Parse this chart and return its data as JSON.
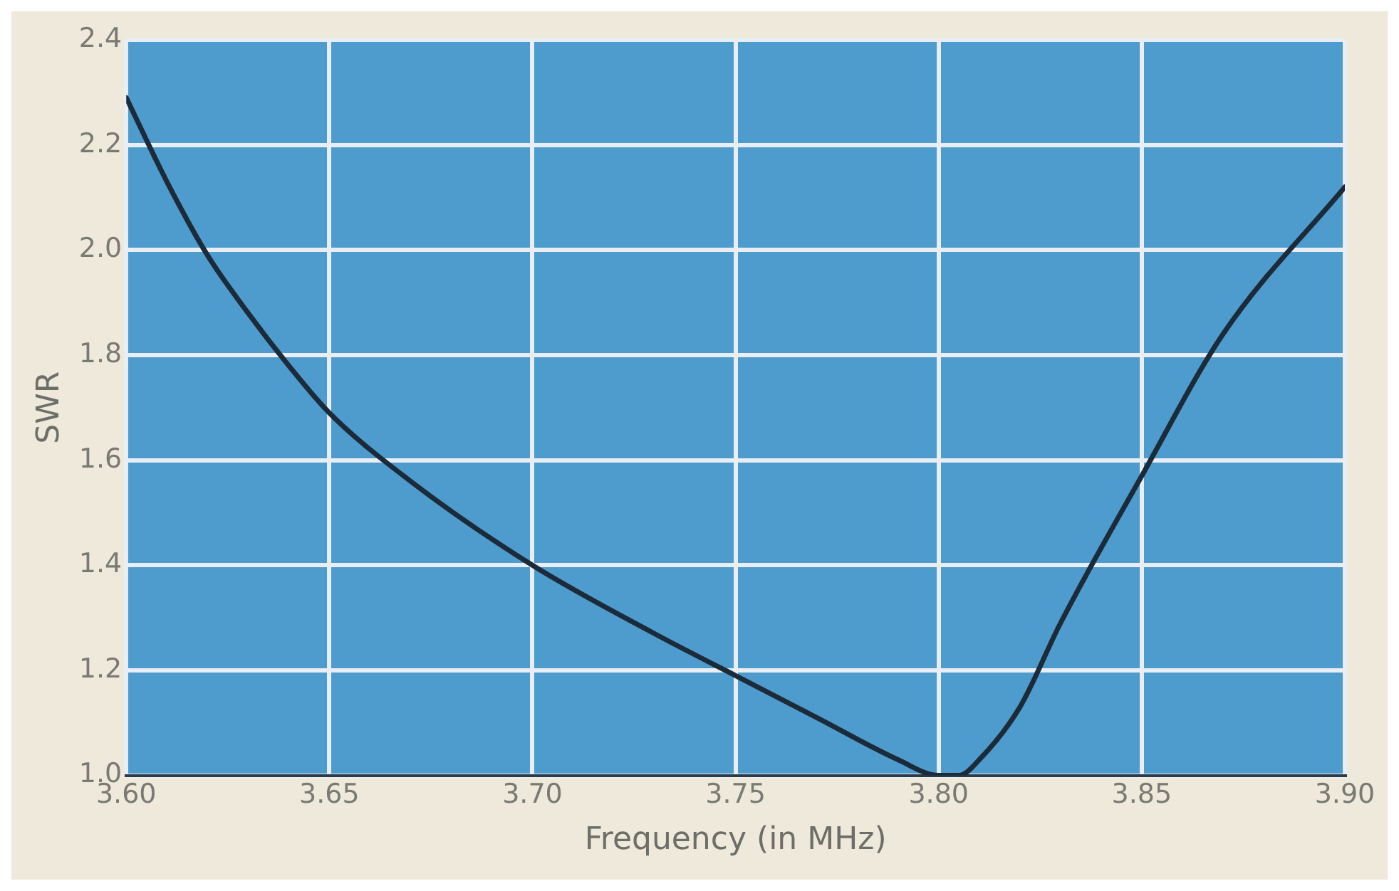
{
  "chart_data": {
    "type": "line",
    "xlabel": "Frequency (in MHz)",
    "ylabel": "SWR",
    "x": [
      3.6,
      3.61,
      3.62,
      3.63,
      3.64,
      3.65,
      3.67,
      3.7,
      3.73,
      3.75,
      3.77,
      3.79,
      3.8,
      3.805,
      3.81,
      3.82,
      3.83,
      3.85,
      3.87,
      3.9
    ],
    "series": [
      {
        "color": "#1c2b3a",
        "values": [
          2.29,
          2.13,
          1.99,
          1.88,
          1.78,
          1.69,
          1.56,
          1.4,
          1.27,
          1.19,
          1.11,
          1.03,
          1.0,
          1.0,
          1.03,
          1.13,
          1.29,
          1.57,
          1.84,
          2.12
        ]
      }
    ],
    "xlim": [
      3.6,
      3.9
    ],
    "ylim": [
      1.0,
      2.4
    ],
    "xticks": [
      {
        "value": 3.6,
        "label": "3.60"
      },
      {
        "value": 3.65,
        "label": "3.65"
      },
      {
        "value": 3.7,
        "label": "3.70"
      },
      {
        "value": 3.75,
        "label": "3.75"
      },
      {
        "value": 3.8,
        "label": "3.80"
      },
      {
        "value": 3.85,
        "label": "3.85"
      },
      {
        "value": 3.9,
        "label": "3.90"
      }
    ],
    "yticks": [
      {
        "value": 1.0,
        "label": "1.0"
      },
      {
        "value": 1.2,
        "label": "1.2"
      },
      {
        "value": 1.4,
        "label": "1.4"
      },
      {
        "value": 1.6,
        "label": "1.6"
      },
      {
        "value": 1.8,
        "label": "1.8"
      },
      {
        "value": 2.0,
        "label": "2.0"
      },
      {
        "value": 2.2,
        "label": "2.2"
      },
      {
        "value": 2.4,
        "label": "2.4"
      }
    ],
    "grid": true,
    "marker": "none",
    "line_style": "solid"
  }
}
